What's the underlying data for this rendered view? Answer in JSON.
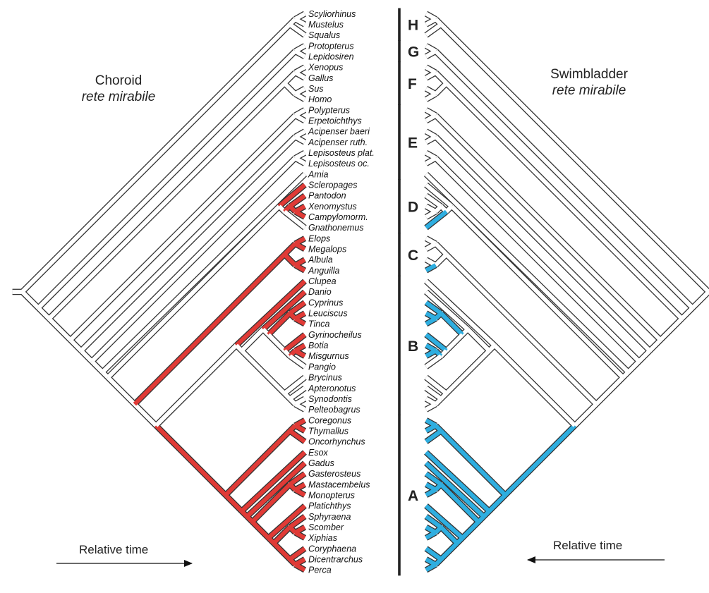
{
  "left_panel": {
    "title_line1": "Choroid",
    "title_line2": "rete mirabile",
    "time_label": "Relative time"
  },
  "right_panel": {
    "title_line1": "Swimbladder",
    "title_line2": "rete mirabile",
    "time_label": "Relative time"
  },
  "colors": {
    "choroid_rete": "#e03a36",
    "swimbladder_rete": "#2eaee0",
    "absent": "#ffffff",
    "outline": "#333333"
  },
  "taxa": [
    "Scyliorhinus",
    "Mustelus",
    "Squalus",
    "Protopterus",
    "Lepidosiren",
    "Xenopus",
    "Gallus",
    "Sus",
    "Homo",
    "Polypterus",
    "Erpetoichthys",
    "Acipenser baeri",
    "Acipenser ruth.",
    "Lepisosteus plat.",
    "Lepisosteus oc.",
    "Amia",
    "Scleropages",
    "Pantodon",
    "Xenomystus",
    "Campylomorm.",
    "Gnathonemus",
    "Elops",
    "Megalops",
    "Albula",
    "Anguilla",
    "Clupea",
    "Danio",
    "Cyprinus",
    "Leuciscus",
    "Tinca",
    "Gyrinocheilus",
    "Botia",
    "Misgurnus",
    "Pangio",
    "Brycinus",
    "Apteronotus",
    "Synodontis",
    "Pelteobagrus",
    "Coregonus",
    "Thymallus",
    "Oncorhynchus",
    "Esox",
    "Gadus",
    "Gasterosteus",
    "Mastacembelus",
    "Monopterus",
    "Platichthys",
    "Sphyraena",
    "Scomber",
    "Xiphias",
    "Coryphaena",
    "Dicentrarchus",
    "Perca"
  ],
  "groups": [
    {
      "label": "H",
      "first": 0,
      "last": 2
    },
    {
      "label": "G",
      "first": 3,
      "last": 4
    },
    {
      "label": "F",
      "first": 5,
      "last": 8
    },
    {
      "label": "E",
      "first": 9,
      "last": 15
    },
    {
      "label": "D",
      "first": 16,
      "last": 20
    },
    {
      "label": "C",
      "first": 21,
      "last": 24
    },
    {
      "label": "B",
      "first": 25,
      "last": 37
    },
    {
      "label": "A",
      "first": 38,
      "last": 52
    }
  ],
  "tree_newick": "((((((((((((((((Coregonus,Thymallus),Oncorhynchus),(Esox,((Gadus,((Gasterosteus,(Mastacembelus,Monopterus)),(Platichthys,((Sphyraena,(Scomber,Xiphias)),(Coryphaena,(Dicentrarchus,Perca)))))))))),((Clupea,((Danio,((Cyprinus,(Leuciscus,Tinca)),(Gyrinocheilus,((Botia,Misgurnus),Pangio)))),(Brycinus,(Apteronotus,(Synodontis,Pelteobagrus))))))),((Elops,Megalops),(Albula,Anguilla))),((Scleropages,((Pantodon,(Xenomystus,Campylomorm.)),Gnathonemus)))),Amia),(Lepisosteus plat.,Lepisosteus oc.)),(Acipenser baeri,Acipenser ruth.)),(Polypterus,Erpetoichthys)),((Xenopus,Gallus),(Sus,Homo))),(Protopterus,Lepidosiren)),((Scyliorhinus,Mustelus),Squalus))",
  "choroid_rete_present": [
    "Scleropages",
    "Pantodon",
    "Xenomystus",
    "Campylomorm.",
    "Elops",
    "Megalops",
    "Albula",
    "Anguilla",
    "Clupea",
    "Danio",
    "Cyprinus",
    "Leuciscus",
    "Tinca",
    "Gyrinocheilus",
    "Botia",
    "Misgurnus",
    "Coregonus",
    "Thymallus",
    "Oncorhynchus",
    "Esox",
    "Gadus",
    "Gasterosteus",
    "Mastacembelus",
    "Monopterus",
    "Platichthys",
    "Sphyraena",
    "Scomber",
    "Xiphias",
    "Coryphaena",
    "Dicentrarchus",
    "Perca"
  ],
  "swimbladder_rete_present": [
    "Gnathonemus",
    "Anguilla",
    "Cyprinus",
    "Leuciscus",
    "Tinca",
    "Gyrinocheilus",
    "Botia",
    "Misgurnus",
    "Coregonus",
    "Thymallus",
    "Oncorhynchus",
    "Esox",
    "Gadus",
    "Gasterosteus",
    "Mastacembelus",
    "Monopterus",
    "Platichthys",
    "Sphyraena",
    "Scomber",
    "Xiphias",
    "Coryphaena",
    "Dicentrarchus",
    "Perca"
  ]
}
